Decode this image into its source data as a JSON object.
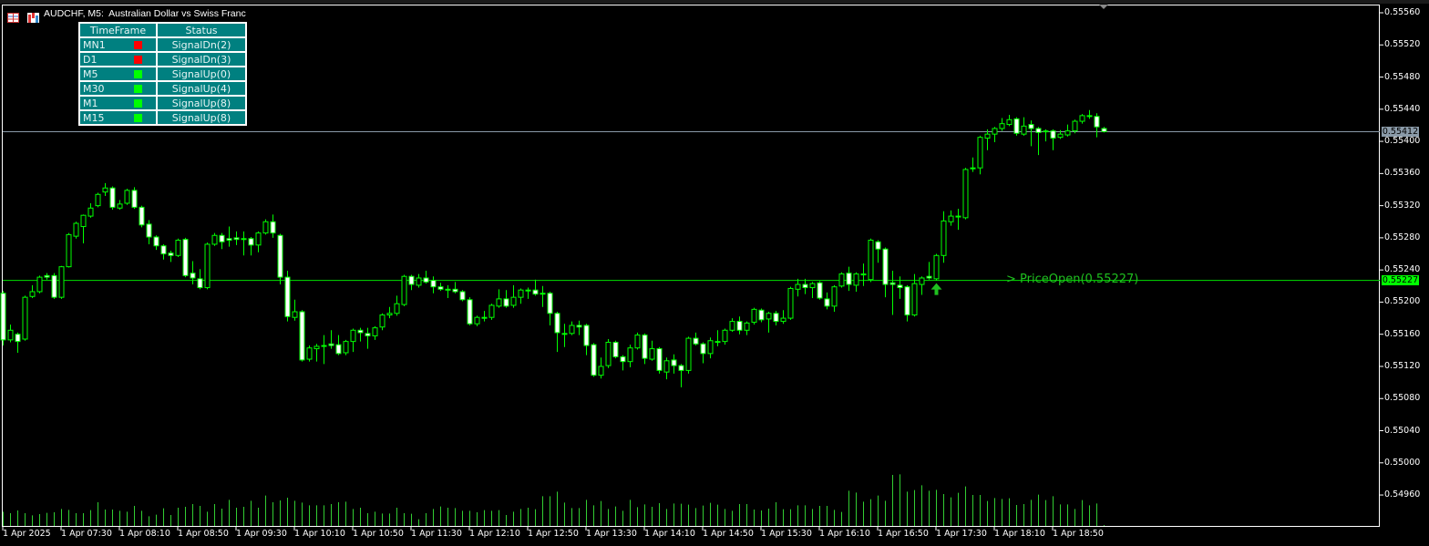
{
  "window": {
    "title": "AUDCHF, M5:  Australian Dollar vs Swiss Franc",
    "icons": [
      "menu-icon",
      "chart-icon"
    ]
  },
  "signal_table": {
    "headers": [
      "TimeFrame",
      "Status"
    ],
    "rows": [
      {
        "timeframe": "MN1",
        "status": "SignalDn(2)",
        "color": "#ff0000"
      },
      {
        "timeframe": "D1",
        "status": "SignalDn(3)",
        "color": "#ff0000"
      },
      {
        "timeframe": "M5",
        "status": "SignalUp(0)",
        "color": "#00ff00"
      },
      {
        "timeframe": "M30",
        "status": "SignalUp(4)",
        "color": "#00ff00"
      },
      {
        "timeframe": "M1",
        "status": "SignalUp(8)",
        "color": "#00ff00"
      },
      {
        "timeframe": "M15",
        "status": "SignalUp(8)",
        "color": "#00ff00"
      }
    ]
  },
  "annotation": {
    "text": "> PriceOpen(0.55227)",
    "arrow": "up-arrow-icon",
    "color": "#1fc01f"
  },
  "chart_data": {
    "type": "candlestick",
    "symbol": "AUDCHF",
    "timeframe": "M5",
    "ylim": [
      0.5493,
      0.5557
    ],
    "y_ticks": [
      "0.55560",
      "0.55520",
      "0.55480",
      "0.55440",
      "0.55400",
      "0.55360",
      "0.55320",
      "0.55280",
      "0.55240",
      "0.55200",
      "0.55160",
      "0.55120",
      "0.55080",
      "0.55040",
      "0.55000",
      "0.54960"
    ],
    "x_ticks": [
      "1 Apr 2025",
      "1 Apr 07:30",
      "1 Apr 08:10",
      "1 Apr 08:50",
      "1 Apr 09:30",
      "1 Apr 10:10",
      "1 Apr 10:50",
      "1 Apr 11:30",
      "1 Apr 12:10",
      "1 Apr 12:50",
      "1 Apr 13:30",
      "1 Apr 14:10",
      "1 Apr 14:50",
      "1 Apr 15:30",
      "1 Apr 16:10",
      "1 Apr 16:50",
      "1 Apr 17:30",
      "1 Apr 18:10",
      "1 Apr 18:50"
    ],
    "bid_line": {
      "value": 0.55412,
      "label": "0.55412",
      "color": "#8a9aa8"
    },
    "open_line": {
      "value": 0.55227,
      "label": "0.55227",
      "color": "#00ff00"
    },
    "bull_color": "#00ff00",
    "bear_fill": "#ffffff",
    "ohlc": [
      [
        0.55211,
        0.55214,
        0.55146,
        0.55153
      ],
      [
        0.55153,
        0.55172,
        0.5515,
        0.55165
      ],
      [
        0.5516,
        0.55162,
        0.55137,
        0.55151
      ],
      [
        0.55154,
        0.55208,
        0.55152,
        0.55206
      ],
      [
        0.55207,
        0.55221,
        0.55205,
        0.55213
      ],
      [
        0.55213,
        0.55233,
        0.55211,
        0.55231
      ],
      [
        0.55233,
        0.55236,
        0.55228,
        0.55231
      ],
      [
        0.55233,
        0.55236,
        0.55204,
        0.55206
      ],
      [
        0.55206,
        0.55245,
        0.55204,
        0.55244
      ],
      [
        0.55244,
        0.55286,
        0.55243,
        0.55284
      ],
      [
        0.55282,
        0.553,
        0.55279,
        0.55298
      ],
      [
        0.55294,
        0.55309,
        0.55273,
        0.55308
      ],
      [
        0.55307,
        0.55323,
        0.55305,
        0.55317
      ],
      [
        0.5532,
        0.55336,
        0.55318,
        0.55334
      ],
      [
        0.55337,
        0.55348,
        0.55332,
        0.55342
      ],
      [
        0.55342,
        0.55344,
        0.55315,
        0.55318
      ],
      [
        0.55317,
        0.55327,
        0.55315,
        0.55322
      ],
      [
        0.55323,
        0.55341,
        0.55321,
        0.55339
      ],
      [
        0.55339,
        0.55343,
        0.55316,
        0.55318
      ],
      [
        0.55318,
        0.5532,
        0.55293,
        0.55296
      ],
      [
        0.55297,
        0.55302,
        0.55272,
        0.55281
      ],
      [
        0.55281,
        0.55283,
        0.55265,
        0.5527
      ],
      [
        0.5527,
        0.55272,
        0.55253,
        0.5526
      ],
      [
        0.55261,
        0.55264,
        0.5525,
        0.55258
      ],
      [
        0.55258,
        0.55279,
        0.55256,
        0.55277
      ],
      [
        0.55278,
        0.5528,
        0.55231,
        0.55233
      ],
      [
        0.55236,
        0.55251,
        0.55222,
        0.5523
      ],
      [
        0.55229,
        0.55241,
        0.55216,
        0.55218
      ],
      [
        0.55218,
        0.55274,
        0.55216,
        0.55272
      ],
      [
        0.55272,
        0.55286,
        0.5527,
        0.55283
      ],
      [
        0.55283,
        0.55286,
        0.55266,
        0.55275
      ],
      [
        0.55279,
        0.55294,
        0.55269,
        0.55277
      ],
      [
        0.5528,
        0.55288,
        0.55271,
        0.55278
      ],
      [
        0.55279,
        0.55288,
        0.55258,
        0.55279
      ],
      [
        0.55279,
        0.55281,
        0.55258,
        0.55271
      ],
      [
        0.55271,
        0.55288,
        0.55262,
        0.55286
      ],
      [
        0.55286,
        0.55303,
        0.55284,
        0.553
      ],
      [
        0.553,
        0.55309,
        0.5528,
        0.55286
      ],
      [
        0.55283,
        0.55285,
        0.55222,
        0.55231
      ],
      [
        0.55231,
        0.55239,
        0.55176,
        0.55182
      ],
      [
        0.55181,
        0.55203,
        0.55177,
        0.55188
      ],
      [
        0.55188,
        0.5519,
        0.55126,
        0.55128
      ],
      [
        0.55129,
        0.55146,
        0.55126,
        0.55143
      ],
      [
        0.55142,
        0.55148,
        0.55126,
        0.55145
      ],
      [
        0.55146,
        0.55159,
        0.55123,
        0.55146
      ],
      [
        0.55148,
        0.55165,
        0.55142,
        0.55146
      ],
      [
        0.55147,
        0.55159,
        0.55134,
        0.55136
      ],
      [
        0.55137,
        0.55153,
        0.55134,
        0.55151
      ],
      [
        0.55151,
        0.55167,
        0.55138,
        0.55165
      ],
      [
        0.55165,
        0.55168,
        0.55151,
        0.55162
      ],
      [
        0.55161,
        0.55168,
        0.55142,
        0.55158
      ],
      [
        0.55158,
        0.5517,
        0.55153,
        0.55168
      ],
      [
        0.55169,
        0.55186,
        0.55165,
        0.55184
      ],
      [
        0.55184,
        0.55194,
        0.5518,
        0.55186
      ],
      [
        0.55186,
        0.55208,
        0.55183,
        0.55198
      ],
      [
        0.55197,
        0.55234,
        0.55195,
        0.55232
      ],
      [
        0.55232,
        0.55234,
        0.55215,
        0.55222
      ],
      [
        0.55221,
        0.55235,
        0.55218,
        0.5523
      ],
      [
        0.5523,
        0.55239,
        0.55223,
        0.55225
      ],
      [
        0.55227,
        0.55232,
        0.55211,
        0.55219
      ],
      [
        0.55219,
        0.55224,
        0.55214,
        0.55216
      ],
      [
        0.55216,
        0.55221,
        0.55205,
        0.55216
      ],
      [
        0.55216,
        0.55225,
        0.55211,
        0.55213
      ],
      [
        0.55213,
        0.55215,
        0.55201,
        0.55203
      ],
      [
        0.55203,
        0.55206,
        0.55171,
        0.55173
      ],
      [
        0.55173,
        0.55183,
        0.5517,
        0.55181
      ],
      [
        0.55181,
        0.55189,
        0.55176,
        0.55181
      ],
      [
        0.55181,
        0.55198,
        0.55178,
        0.55196
      ],
      [
        0.55195,
        0.55216,
        0.55193,
        0.55204
      ],
      [
        0.55204,
        0.55215,
        0.55193,
        0.55195
      ],
      [
        0.55196,
        0.55221,
        0.55193,
        0.55206
      ],
      [
        0.55206,
        0.55217,
        0.55198,
        0.55215
      ],
      [
        0.55215,
        0.55218,
        0.55204,
        0.55215
      ],
      [
        0.55215,
        0.55228,
        0.55208,
        0.5521
      ],
      [
        0.55211,
        0.5522,
        0.55194,
        0.55211
      ],
      [
        0.55211,
        0.55213,
        0.55171,
        0.55186
      ],
      [
        0.55186,
        0.55188,
        0.55138,
        0.55162
      ],
      [
        0.55161,
        0.55173,
        0.55144,
        0.55161
      ],
      [
        0.55161,
        0.55176,
        0.55159,
        0.55171
      ],
      [
        0.55171,
        0.55177,
        0.55159,
        0.55169
      ],
      [
        0.55171,
        0.55173,
        0.55134,
        0.55146
      ],
      [
        0.55147,
        0.55149,
        0.55107,
        0.55109
      ],
      [
        0.55109,
        0.55131,
        0.55105,
        0.5512
      ],
      [
        0.55121,
        0.55154,
        0.55118,
        0.5515
      ],
      [
        0.5515,
        0.55152,
        0.5513,
        0.55132
      ],
      [
        0.55132,
        0.55134,
        0.55115,
        0.55126
      ],
      [
        0.55126,
        0.55147,
        0.55119,
        0.55143
      ],
      [
        0.55143,
        0.55162,
        0.55141,
        0.55159
      ],
      [
        0.55159,
        0.55161,
        0.55123,
        0.5513
      ],
      [
        0.55129,
        0.55152,
        0.55127,
        0.55142
      ],
      [
        0.55142,
        0.55144,
        0.55111,
        0.55115
      ],
      [
        0.55113,
        0.55131,
        0.55104,
        0.55127
      ],
      [
        0.55128,
        0.55135,
        0.55111,
        0.55121
      ],
      [
        0.55121,
        0.55123,
        0.55094,
        0.55115
      ],
      [
        0.55115,
        0.55157,
        0.55111,
        0.55155
      ],
      [
        0.55155,
        0.55162,
        0.55146,
        0.55148
      ],
      [
        0.55148,
        0.5515,
        0.55124,
        0.55136
      ],
      [
        0.55136,
        0.55156,
        0.5513,
        0.55152
      ],
      [
        0.55151,
        0.55165,
        0.55145,
        0.55151
      ],
      [
        0.55151,
        0.55167,
        0.55147,
        0.55165
      ],
      [
        0.55165,
        0.5518,
        0.55163,
        0.55176
      ],
      [
        0.55176,
        0.55182,
        0.5516,
        0.55165
      ],
      [
        0.55165,
        0.55176,
        0.55159,
        0.55174
      ],
      [
        0.55175,
        0.55193,
        0.55172,
        0.55191
      ],
      [
        0.5519,
        0.55192,
        0.55175,
        0.55178
      ],
      [
        0.55179,
        0.55188,
        0.55162,
        0.55186
      ],
      [
        0.55186,
        0.55189,
        0.55171,
        0.55176
      ],
      [
        0.55176,
        0.5519,
        0.55173,
        0.5518
      ],
      [
        0.5518,
        0.55219,
        0.55178,
        0.55217
      ],
      [
        0.55216,
        0.55229,
        0.55207,
        0.55222
      ],
      [
        0.55222,
        0.55229,
        0.5521,
        0.55218
      ],
      [
        0.55218,
        0.55225,
        0.55205,
        0.55223
      ],
      [
        0.55224,
        0.55226,
        0.55203,
        0.55205
      ],
      [
        0.55204,
        0.55212,
        0.55191,
        0.55195
      ],
      [
        0.55195,
        0.55221,
        0.55188,
        0.55219
      ],
      [
        0.5522,
        0.55237,
        0.55218,
        0.55235
      ],
      [
        0.55236,
        0.55244,
        0.55214,
        0.55222
      ],
      [
        0.55221,
        0.55237,
        0.55213,
        0.55235
      ],
      [
        0.55235,
        0.55248,
        0.5522,
        0.55235
      ],
      [
        0.55228,
        0.55279,
        0.55225,
        0.55277
      ],
      [
        0.55275,
        0.55277,
        0.55249,
        0.55266
      ],
      [
        0.55266,
        0.55268,
        0.55206,
        0.55222
      ],
      [
        0.55224,
        0.55239,
        0.55184,
        0.55222
      ],
      [
        0.55221,
        0.55232,
        0.55204,
        0.55218
      ],
      [
        0.55219,
        0.55221,
        0.55176,
        0.55184
      ],
      [
        0.55184,
        0.55235,
        0.55182,
        0.55223
      ],
      [
        0.55222,
        0.55232,
        0.55209,
        0.5523
      ],
      [
        0.55232,
        0.5525,
        0.55228,
        0.5523
      ],
      [
        0.55229,
        0.5526,
        0.55227,
        0.55258
      ],
      [
        0.55258,
        0.55313,
        0.55249,
        0.55301
      ],
      [
        0.553,
        0.55314,
        0.55295,
        0.55307
      ],
      [
        0.55307,
        0.55316,
        0.5529,
        0.55307
      ],
      [
        0.55305,
        0.55367,
        0.55303,
        0.55365
      ],
      [
        0.55367,
        0.5538,
        0.55362,
        0.55367
      ],
      [
        0.55367,
        0.55407,
        0.55359,
        0.55405
      ],
      [
        0.55404,
        0.55415,
        0.55389,
        0.55409
      ],
      [
        0.55409,
        0.55418,
        0.55399,
        0.55416
      ],
      [
        0.55416,
        0.55429,
        0.55413,
        0.55422
      ],
      [
        0.55421,
        0.55433,
        0.55419,
        0.55427
      ],
      [
        0.55428,
        0.5543,
        0.55407,
        0.5541
      ],
      [
        0.55409,
        0.5543,
        0.55407,
        0.55419
      ],
      [
        0.55421,
        0.55426,
        0.55394,
        0.55416
      ],
      [
        0.55416,
        0.55418,
        0.55383,
        0.55411
      ],
      [
        0.55413,
        0.55415,
        0.554,
        0.55413
      ],
      [
        0.55413,
        0.55415,
        0.55389,
        0.55404
      ],
      [
        0.55405,
        0.55414,
        0.55403,
        0.55409
      ],
      [
        0.55408,
        0.55421,
        0.55406,
        0.55413
      ],
      [
        0.55413,
        0.55427,
        0.5541,
        0.55425
      ],
      [
        0.55425,
        0.55434,
        0.55422,
        0.55432
      ],
      [
        0.55432,
        0.55439,
        0.55428,
        0.55432
      ],
      [
        0.55431,
        0.55435,
        0.55405,
        0.55418
      ],
      [
        0.55416,
        0.55418,
        0.55411,
        0.55412
      ]
    ],
    "volume": [
      47,
      42,
      51,
      42,
      35,
      39,
      43,
      45,
      56,
      53,
      42,
      42,
      52,
      78,
      54,
      54,
      50,
      47,
      66,
      50,
      32,
      37,
      58,
      36,
      60,
      63,
      72,
      66,
      47,
      72,
      57,
      86,
      60,
      63,
      83,
      60,
      100,
      78,
      84,
      93,
      83,
      77,
      68,
      68,
      68,
      72,
      78,
      80,
      56,
      60,
      42,
      47,
      41,
      41,
      60,
      42,
      40,
      22,
      42,
      56,
      64,
      60,
      59,
      50,
      50,
      45,
      52,
      50,
      52,
      36,
      47,
      56,
      60,
      55,
      98,
      98,
      113,
      77,
      59,
      59,
      86,
      68,
      82,
      56,
      64,
      50,
      86,
      62,
      71,
      63,
      75,
      56,
      74,
      73,
      70,
      59,
      67,
      76,
      70,
      56,
      50,
      72,
      72,
      54,
      51,
      57,
      78,
      55,
      55,
      68,
      68,
      56,
      66,
      66,
      53,
      46,
      116,
      110,
      80,
      88,
      100,
      83,
      168,
      170,
      113,
      118,
      134,
      116,
      119,
      105,
      94,
      109,
      130,
      102,
      102,
      82,
      92,
      89,
      91,
      69,
      72,
      86,
      103,
      85,
      98,
      71,
      71,
      56,
      85,
      68,
      74,
      3
    ]
  }
}
